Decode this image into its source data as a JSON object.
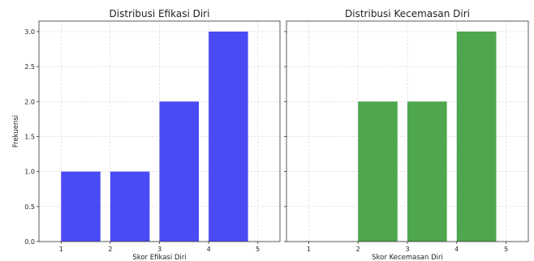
{
  "chart_data": [
    {
      "type": "bar",
      "title": "Distribusi Efikasi Diri",
      "xlabel": "Skor Efikasi Diri",
      "ylabel": "Frekuensi",
      "color": "#4747f5",
      "x_ticks": [
        1,
        2,
        3,
        4,
        5
      ],
      "y_ticks": [
        0.0,
        0.5,
        1.0,
        1.5,
        2.0,
        2.5,
        3.0
      ],
      "y_tick_labels": [
        "0.0",
        "0.5",
        "1.0",
        "1.5",
        "2.0",
        "2.5",
        "3.0"
      ],
      "bars": [
        {
          "from": 1.0,
          "to": 1.8,
          "value": 1
        },
        {
          "from": 2.0,
          "to": 2.8,
          "value": 1
        },
        {
          "from": 3.0,
          "to": 3.8,
          "value": 2
        },
        {
          "from": 4.0,
          "to": 4.8,
          "value": 3
        }
      ],
      "xlim": [
        0.55,
        5.45
      ],
      "ylim": [
        0,
        3.15
      ],
      "grid": true
    },
    {
      "type": "bar",
      "title": "Distribusi Kecemasan Diri",
      "xlabel": "Skor Kecemasan Diri",
      "ylabel": "",
      "color": "#4aa54a",
      "x_ticks": [
        1,
        2,
        3,
        4,
        5
      ],
      "y_ticks": [
        0.0,
        0.5,
        1.0,
        1.5,
        2.0,
        2.5,
        3.0
      ],
      "y_tick_labels": [],
      "bars": [
        {
          "from": 2.0,
          "to": 2.8,
          "value": 2
        },
        {
          "from": 3.0,
          "to": 3.8,
          "value": 2
        },
        {
          "from": 4.0,
          "to": 4.8,
          "value": 3
        }
      ],
      "xlim": [
        0.55,
        5.45
      ],
      "ylim": [
        0,
        3.15
      ],
      "grid": true
    }
  ]
}
